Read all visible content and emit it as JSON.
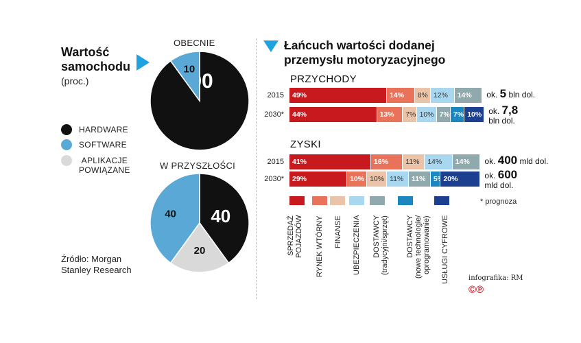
{
  "left": {
    "title_line1": "Wartość",
    "title_line2": "samochodu",
    "unit": "(proc.)",
    "now_label": "OBECNIE",
    "future_label": "W PRZYSZŁOŚCI",
    "legend": [
      {
        "label": "HARDWARE",
        "color": "#111111"
      },
      {
        "label": "SOFTWARE",
        "color": "#5aa8d6"
      },
      {
        "label": "APLIKACJE\nPOWIĄZANE",
        "color": "#d9d9d9"
      }
    ],
    "source": "Źródło: Morgan\nStanley Research"
  },
  "right": {
    "title_line1": "Łańcuch wartości dodanej",
    "title_line2": "przemysłu motoryzacyjnego",
    "revenue_label": "PRZYCHODY",
    "profit_label": "ZYSKI",
    "forecast_note": "* prognoza",
    "credit": "infografika: RM",
    "copyright": "©℗"
  },
  "chart_data": [
    {
      "type": "pie",
      "title": "OBECNIE",
      "categories": [
        "HARDWARE",
        "SOFTWARE"
      ],
      "values": [
        90,
        10
      ],
      "colors": [
        "#111111",
        "#5aa8d6"
      ]
    },
    {
      "type": "pie",
      "title": "W PRZYSZŁOŚCI",
      "categories": [
        "HARDWARE",
        "APLIKACJE POWIĄZANE",
        "SOFTWARE"
      ],
      "values": [
        40,
        20,
        40
      ],
      "colors": [
        "#111111",
        "#d9d9d9",
        "#5aa8d6"
      ]
    },
    {
      "type": "bar",
      "stacked": true,
      "orientation": "horizontal",
      "categories": [
        "SPRZEDAŻ POJAZDÓW",
        "RYNEK WTÓRNY",
        "FINANSE",
        "UBEZPIECZENIA",
        "DOSTAWCY (tradycyjni/sprzęt)",
        "DOSTAWCY (nowe technologie/ oprogramowanie)",
        "USŁUGI CYFROWE"
      ],
      "colors": [
        "#c8191f",
        "#e8735a",
        "#ebc3a8",
        "#a9d7ef",
        "#8fa9ad",
        "#1c86c0",
        "#1c3f8f"
      ],
      "groups": [
        {
          "name": "PRZYCHODY",
          "rows": [
            {
              "year": "2015",
              "values": [
                49,
                14,
                8,
                12,
                14,
                0,
                0
              ],
              "total_prefix": "ok.",
              "total_value": "5",
              "total_unit": "bln dol."
            },
            {
              "year": "2030*",
              "values": [
                44,
                13,
                7,
                10,
                7,
                7,
                10
              ],
              "total_prefix": "ok.",
              "total_value": "7,8",
              "total_unit": "bln dol."
            }
          ]
        },
        {
          "name": "ZYSKI",
          "rows": [
            {
              "year": "2015",
              "values": [
                41,
                16,
                11,
                14,
                14,
                0,
                0
              ],
              "total_prefix": "ok.",
              "total_value": "400",
              "total_unit": "mld dol."
            },
            {
              "year": "2030*",
              "values": [
                29,
                10,
                10,
                11,
                11,
                5,
                20
              ],
              "total_prefix": "ok.",
              "total_value": "600",
              "total_unit": "mld dol."
            }
          ]
        }
      ]
    }
  ]
}
